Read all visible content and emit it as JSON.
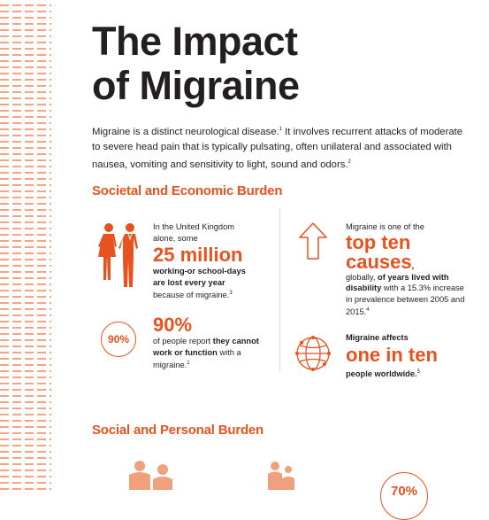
{
  "title": {
    "line1": "The Impact",
    "line2": "of Migraine"
  },
  "intro": {
    "part1": "Migraine is a distinct neurological disease.",
    "ref1": "1",
    "part2": " It involves recurrent attacks of moderate to severe head pain that is typically pulsating, often unilateral and associated with nausea, vomiting and sensitivity to light, sound and odors.",
    "ref2": "2"
  },
  "sections": {
    "societal": "Societal and Economic Burden",
    "social": "Social and Personal Burden"
  },
  "stat_uk": {
    "lead": "In the United Kingdom alone, some",
    "big": "25 million",
    "bold": "working-or school-days are lost every year",
    "tail": " because of migraine.",
    "ref": "3"
  },
  "stat_top": {
    "lead": "Migraine is one of the",
    "big1": "top ten",
    "big2": "causes",
    "comma": ",",
    "mid": " globally, ",
    "bold": "of years lived with disability",
    "tail": " with a 15.3% increase in prevalence between 2005 and 2015.",
    "ref": "4"
  },
  "stat_work": {
    "circle_label": "90%",
    "big": "90%",
    "lead": "of people report ",
    "bold": "they cannot work or function",
    "tail": " with a migraine.",
    "ref": "1"
  },
  "stat_world": {
    "lead": "Migraine affects",
    "big": "one in ten",
    "bold": "people worldwide.",
    "ref": "5"
  },
  "bottom_circle_label": "70%",
  "icons": [
    "people-icon",
    "up-arrow-icon",
    "percent-circle-icon",
    "globe-icon",
    "couple-icon",
    "family-icon"
  ],
  "colors": {
    "accent": "#e8521e",
    "text": "#231f20",
    "stripe": "#f4a57f"
  }
}
